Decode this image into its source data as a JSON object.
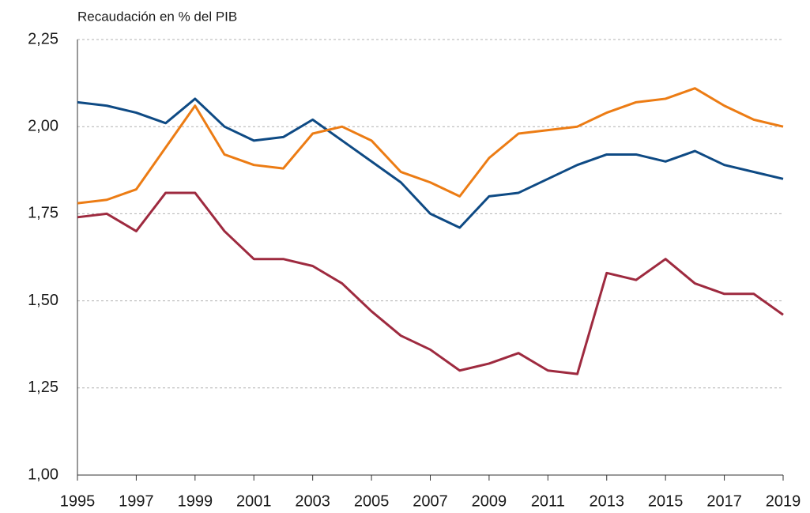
{
  "chart_data": {
    "type": "line",
    "y_axis_label": "Recaudación en % del PIB",
    "x": [
      1995,
      1996,
      1997,
      1998,
      1999,
      2000,
      2001,
      2002,
      2003,
      2004,
      2005,
      2006,
      2007,
      2008,
      2009,
      2010,
      2011,
      2012,
      2013,
      2014,
      2015,
      2016,
      2017,
      2018,
      2019
    ],
    "series": [
      {
        "color": "#0e4a84",
        "values": [
          2.07,
          2.06,
          2.04,
          2.01,
          2.08,
          2.0,
          1.96,
          1.97,
          2.02,
          1.96,
          1.9,
          1.84,
          1.75,
          1.71,
          1.8,
          1.81,
          1.85,
          1.89,
          1.92,
          1.92,
          1.9,
          1.93,
          1.89,
          1.87,
          1.85
        ]
      },
      {
        "color": "#ec7c14",
        "values": [
          1.78,
          1.79,
          1.82,
          1.94,
          2.06,
          1.92,
          1.89,
          1.88,
          1.98,
          2.0,
          1.96,
          1.87,
          1.84,
          1.8,
          1.91,
          1.98,
          1.99,
          2.0,
          2.04,
          2.07,
          2.08,
          2.11,
          2.06,
          2.02,
          2.0
        ]
      },
      {
        "color": "#9e2a3f",
        "values": [
          1.74,
          1.75,
          1.7,
          1.81,
          1.81,
          1.7,
          1.62,
          1.62,
          1.6,
          1.55,
          1.47,
          1.4,
          1.36,
          1.3,
          1.32,
          1.35,
          1.3,
          1.29,
          1.58,
          1.56,
          1.62,
          1.55,
          1.52,
          1.52,
          1.46
        ]
      }
    ],
    "xlim": [
      1995,
      2019
    ],
    "xticks": [
      1995,
      1997,
      1999,
      2001,
      2003,
      2005,
      2007,
      2009,
      2011,
      2013,
      2015,
      2017,
      2019
    ],
    "ylim": [
      1.0,
      2.25
    ],
    "yticks": [
      {
        "value": 1.0,
        "label": "1,00"
      },
      {
        "value": 1.25,
        "label": "1,25"
      },
      {
        "value": 1.5,
        "label": "1,50"
      },
      {
        "value": 1.75,
        "label": "1,75"
      },
      {
        "value": 2.0,
        "label": "2,00"
      },
      {
        "value": 2.25,
        "label": "2,25"
      }
    ],
    "grid": true
  }
}
